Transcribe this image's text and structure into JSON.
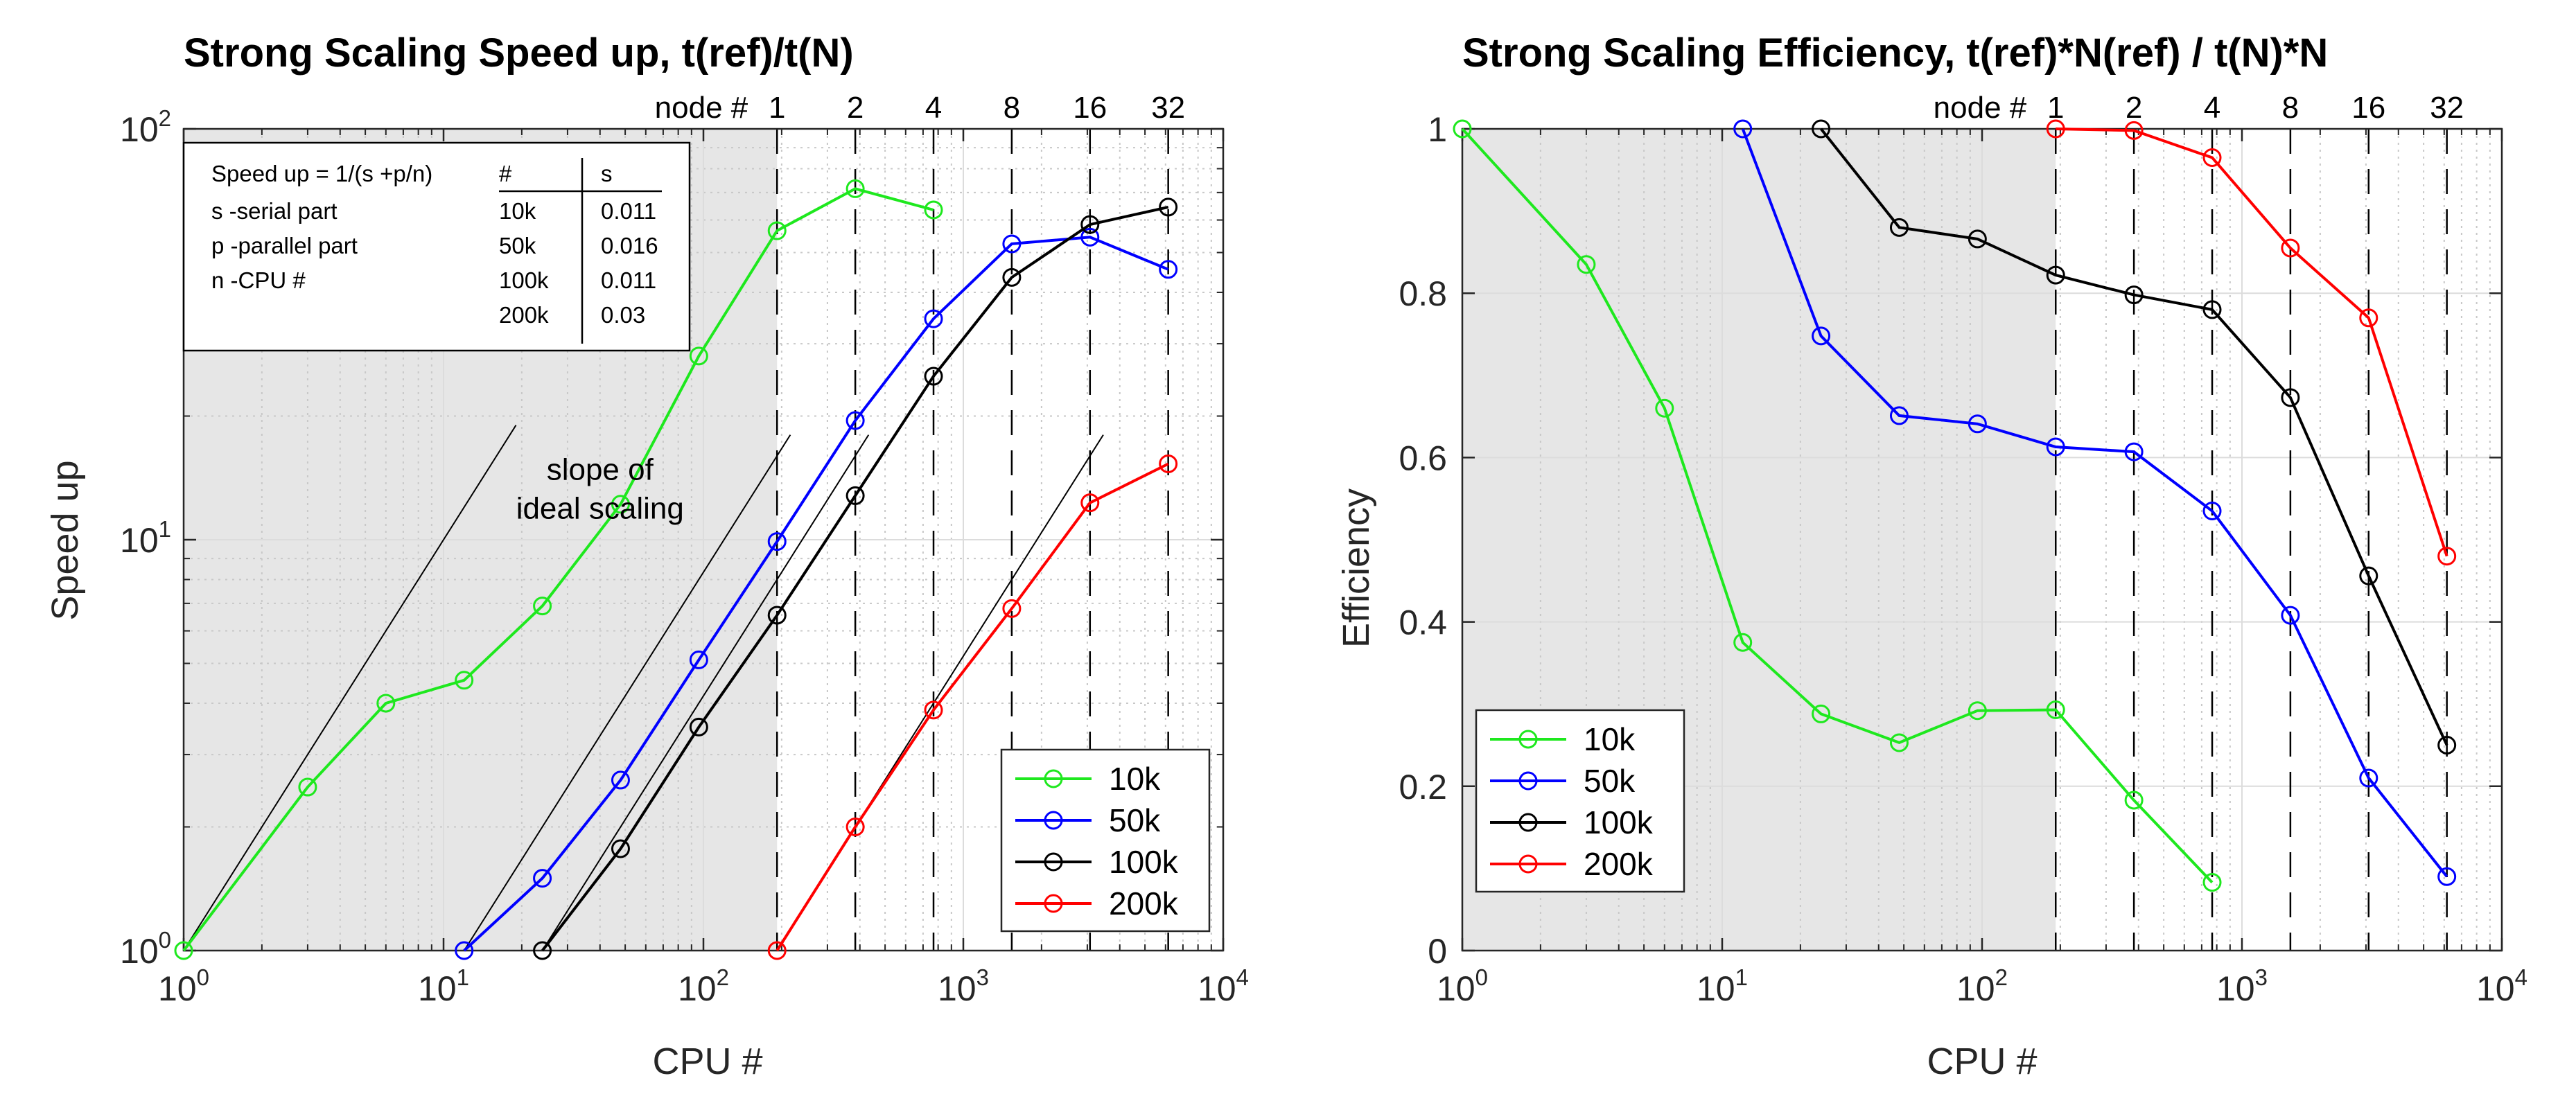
{
  "chart_data": [
    {
      "type": "line",
      "title": "Strong Scaling Speed up, t(ref)/t(N)",
      "xlabel": "CPU #",
      "ylabel": "Speed up",
      "xscale": "log",
      "yscale": "log",
      "xlim": [
        1,
        10000
      ],
      "ylim": [
        1,
        100
      ],
      "grid": true,
      "legend_position": "bottom-right",
      "x_ticks": [
        {
          "value": 1,
          "base": "10",
          "exp": "0"
        },
        {
          "value": 10,
          "base": "10",
          "exp": "1"
        },
        {
          "value": 100,
          "base": "10",
          "exp": "2"
        },
        {
          "value": 1000,
          "base": "10",
          "exp": "3"
        },
        {
          "value": 10000,
          "base": "10",
          "exp": "4"
        }
      ],
      "y_ticks": [
        {
          "value": 1,
          "base": "10",
          "exp": "0"
        },
        {
          "value": 10,
          "base": "10",
          "exp": "1"
        },
        {
          "value": 100,
          "base": "10",
          "exp": "2"
        }
      ],
      "shaded_region": {
        "x": [
          1,
          192
        ]
      },
      "node_axis_title": "node #",
      "node_markers": [
        {
          "label": "1",
          "cpu": 192
        },
        {
          "label": "2",
          "cpu": 384
        },
        {
          "label": "4",
          "cpu": 768
        },
        {
          "label": "8",
          "cpu": 1536
        },
        {
          "label": "16",
          "cpu": 3072
        },
        {
          "label": "32",
          "cpu": 6144
        }
      ],
      "series": [
        {
          "name": "10k",
          "color": "#1ee81e",
          "x": [
            1,
            3,
            6,
            12,
            24,
            48,
            96,
            192,
            384,
            768
          ],
          "y": [
            1,
            2.5,
            4.0,
            4.55,
            6.9,
            12.2,
            28.0,
            56.5,
            71.5,
            63.5
          ]
        },
        {
          "name": "50k",
          "color": "#0000ff",
          "x": [
            12,
            24,
            48,
            96,
            192,
            384,
            768,
            1536,
            3072,
            6144
          ],
          "y": [
            1,
            1.5,
            2.6,
            5.1,
            9.9,
            19.5,
            34.5,
            52.5,
            54.5,
            45.5
          ]
        },
        {
          "name": "100k",
          "color": "#000000",
          "x": [
            24,
            48,
            96,
            192,
            384,
            768,
            1536,
            3072,
            6144
          ],
          "y": [
            1,
            1.77,
            3.5,
            6.55,
            12.8,
            25.0,
            43.5,
            58.5,
            64.5
          ]
        },
        {
          "name": "200k",
          "color": "#ff0000",
          "x": [
            192,
            384,
            768,
            1536,
            3072,
            6144
          ],
          "y": [
            1,
            2.0,
            3.85,
            6.8,
            12.3,
            15.3
          ]
        }
      ],
      "ideal_lines": [
        {
          "x": [
            1,
            19
          ],
          "y": [
            1,
            19
          ]
        },
        {
          "x": [
            12,
            216
          ],
          "y": [
            1,
            18
          ]
        },
        {
          "x": [
            24,
            432
          ],
          "y": [
            1,
            18
          ]
        },
        {
          "x": [
            192,
            3456
          ],
          "y": [
            1,
            18
          ]
        }
      ],
      "annotations": [
        {
          "lines": [
            "slope of",
            "ideal scaling"
          ],
          "x": 40,
          "y": 14
        }
      ],
      "infobox": {
        "formula": "Speed up = 1/(s +p/n)",
        "descriptions": [
          "s -serial part",
          "p -parallel part",
          "n -CPU #"
        ],
        "table_headers": [
          "#",
          "s"
        ],
        "table_rows": [
          {
            "n": "10k",
            "s": "0.011"
          },
          {
            "n": "50k",
            "s": "0.016"
          },
          {
            "n": "100k",
            "s": "0.011"
          },
          {
            "n": "200k",
            "s": "0.03"
          }
        ]
      }
    },
    {
      "type": "line",
      "title": "Strong Scaling Efficiency, t(ref)*N(ref) / t(N)*N",
      "xlabel": "CPU #",
      "ylabel": "Efficiency",
      "xscale": "log",
      "yscale": "linear",
      "xlim": [
        1,
        10000
      ],
      "ylim": [
        0,
        1
      ],
      "grid": true,
      "legend_position": "bottom-left",
      "x_ticks": [
        {
          "value": 1,
          "base": "10",
          "exp": "0"
        },
        {
          "value": 10,
          "base": "10",
          "exp": "1"
        },
        {
          "value": 100,
          "base": "10",
          "exp": "2"
        },
        {
          "value": 1000,
          "base": "10",
          "exp": "3"
        },
        {
          "value": 10000,
          "base": "10",
          "exp": "4"
        }
      ],
      "y_ticks": [
        {
          "value": 0,
          "label": "0"
        },
        {
          "value": 0.2,
          "label": "0.2"
        },
        {
          "value": 0.4,
          "label": "0.4"
        },
        {
          "value": 0.6,
          "label": "0.6"
        },
        {
          "value": 0.8,
          "label": "0.8"
        },
        {
          "value": 1,
          "label": "1"
        }
      ],
      "shaded_region": {
        "x": [
          1,
          192
        ]
      },
      "node_axis_title": "node #",
      "node_markers": [
        {
          "label": "1",
          "cpu": 192
        },
        {
          "label": "2",
          "cpu": 384
        },
        {
          "label": "4",
          "cpu": 768
        },
        {
          "label": "8",
          "cpu": 1536
        },
        {
          "label": "16",
          "cpu": 3072
        },
        {
          "label": "32",
          "cpu": 6144
        }
      ],
      "series": [
        {
          "name": "10k",
          "color": "#1ee81e",
          "x": [
            1,
            3,
            6,
            12,
            24,
            48,
            96,
            192,
            384,
            768
          ],
          "y": [
            1.0,
            0.835,
            0.66,
            0.375,
            0.288,
            0.253,
            0.292,
            0.293,
            0.183,
            0.083
          ]
        },
        {
          "name": "50k",
          "color": "#0000ff",
          "x": [
            12,
            24,
            48,
            96,
            192,
            384,
            768,
            1536,
            3072,
            6144
          ],
          "y": [
            1.0,
            0.748,
            0.651,
            0.641,
            0.613,
            0.607,
            0.535,
            0.408,
            0.21,
            0.09
          ]
        },
        {
          "name": "100k",
          "color": "#000000",
          "x": [
            24,
            48,
            96,
            192,
            384,
            768,
            1536,
            3072,
            6144
          ],
          "y": [
            1.0,
            0.88,
            0.866,
            0.822,
            0.798,
            0.78,
            0.673,
            0.456,
            0.25
          ]
        },
        {
          "name": "200k",
          "color": "#ff0000",
          "x": [
            192,
            384,
            768,
            1536,
            3072,
            6144
          ],
          "y": [
            1.0,
            0.998,
            0.965,
            0.855,
            0.77,
            0.48
          ]
        }
      ]
    }
  ]
}
